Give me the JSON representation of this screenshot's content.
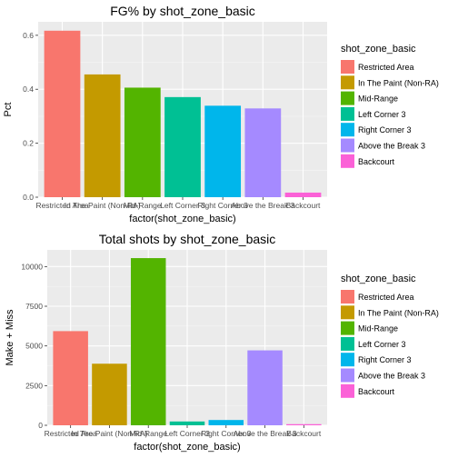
{
  "chart_data": [
    {
      "type": "bar",
      "title": "FG% by shot_zone_basic",
      "xlabel": "factor(shot_zone_basic)",
      "ylabel": "Pct",
      "categories": [
        "Restricted Area",
        "In The Paint (Non-RA)",
        "Mid-Range",
        "Left Corner 3",
        "Right Corner 3",
        "Above the Break 3",
        "Backcourt"
      ],
      "values": [
        0.617,
        0.455,
        0.406,
        0.371,
        0.339,
        0.329,
        0.017
      ],
      "ylim": [
        0,
        0.65
      ],
      "yticks": [
        0.0,
        0.2,
        0.4,
        0.6
      ],
      "ytick_labels": [
        "0.0",
        "0.2",
        "0.4",
        "0.6"
      ],
      "grid": true,
      "legend": {
        "title": "shot_zone_basic",
        "position": "right"
      }
    },
    {
      "type": "bar",
      "title": "Total shots by shot_zone_basic",
      "xlabel": "factor(shot_zone_basic)",
      "ylabel": "Make + Miss",
      "categories": [
        "Restricted Area",
        "In The Paint (Non-RA)",
        "Mid-Range",
        "Left Corner 3",
        "Right Corner 3",
        "Above the Break 3",
        "Backcourt"
      ],
      "values": [
        5932,
        3880,
        10532,
        240,
        333,
        4720,
        71
      ],
      "ylim": [
        0,
        11050
      ],
      "yticks": [
        0,
        2500,
        5000,
        7500,
        10000
      ],
      "ytick_labels": [
        "0",
        "2500",
        "5000",
        "7500",
        "10000"
      ],
      "grid": true,
      "legend": {
        "title": "shot_zone_basic",
        "position": "right"
      }
    }
  ],
  "colors": [
    "#F8766D",
    "#C49A00",
    "#53B400",
    "#00C094",
    "#00B6EB",
    "#A58AFF",
    "#FB61D7"
  ]
}
